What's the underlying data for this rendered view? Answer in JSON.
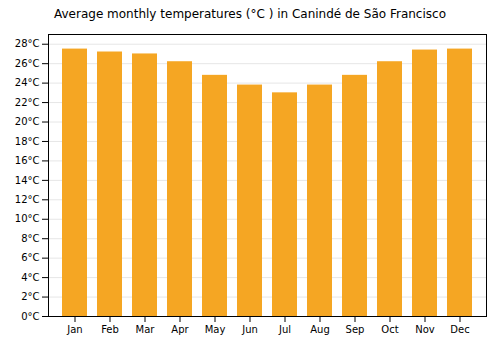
{
  "chart_data": {
    "type": "bar",
    "title": "Average monthly temperatures (°C ) in Canindé de São Francisco",
    "categories": [
      "Jan",
      "Feb",
      "Mar",
      "Apr",
      "May",
      "Jun",
      "Jul",
      "Aug",
      "Sep",
      "Oct",
      "Nov",
      "Dec"
    ],
    "values": [
      27.5,
      27.2,
      27.0,
      26.2,
      24.8,
      23.8,
      23.0,
      23.8,
      24.8,
      26.2,
      27.4,
      27.5
    ],
    "color": "#F5A623",
    "ylim": [
      0,
      29
    ],
    "yticks": [
      {
        "value": 0,
        "label": "0°C"
      },
      {
        "value": 2,
        "label": "2°C"
      },
      {
        "value": 4,
        "label": "4°C"
      },
      {
        "value": 6,
        "label": "6°C"
      },
      {
        "value": 8,
        "label": "8°C"
      },
      {
        "value": 10,
        "label": "10°C"
      },
      {
        "value": 12,
        "label": "12°C"
      },
      {
        "value": 14,
        "label": "14°C"
      },
      {
        "value": 16,
        "label": "16°C"
      },
      {
        "value": 18,
        "label": "18°C"
      },
      {
        "value": 20,
        "label": "20°C"
      },
      {
        "value": 22,
        "label": "22°C"
      },
      {
        "value": 24,
        "label": "24°C"
      },
      {
        "value": 26,
        "label": "26°C"
      },
      {
        "value": 28,
        "label": "28°C"
      }
    ],
    "grid": true
  }
}
